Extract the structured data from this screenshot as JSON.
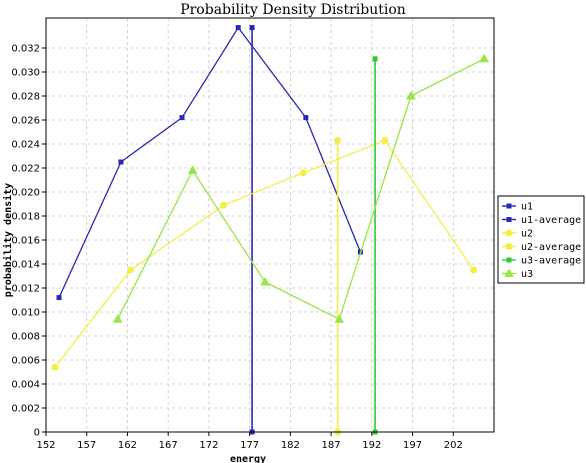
{
  "chart_data": {
    "type": "line",
    "title": "Probability Density Distribution",
    "xlabel": "energy",
    "ylabel": "probability density",
    "xlim": [
      152,
      207
    ],
    "ylim": [
      0,
      0.0345
    ],
    "x_ticks": [
      152,
      157,
      162,
      167,
      172,
      177,
      182,
      187,
      192,
      197,
      202
    ],
    "y_ticks": [
      0,
      0.002,
      0.004,
      0.006,
      0.008,
      0.01,
      0.012,
      0.014,
      0.016,
      0.018,
      0.02,
      0.022,
      0.024,
      0.026,
      0.028,
      0.03,
      0.032
    ],
    "x_tick_labels": [
      "152",
      "157",
      "162",
      "167",
      "172",
      "177",
      "182",
      "187",
      "192",
      "197",
      "202"
    ],
    "y_tick_labels": [
      "0",
      "0.002",
      "0.004",
      "0.006",
      "0.008",
      "0.010",
      "0.012",
      "0.014",
      "0.016",
      "0.018",
      "0.020",
      "0.022",
      "0.024",
      "0.026",
      "0.028",
      "0.030",
      "0.032"
    ],
    "grid": true,
    "legend_position": "right",
    "series": [
      {
        "name": "u1",
        "kind": "line",
        "marker": "square",
        "color": "#2828b4",
        "x": [
          153.6,
          161.2,
          168.7,
          175.6,
          183.9,
          190.6
        ],
        "y": [
          0.0112,
          0.0225,
          0.0262,
          0.0337,
          0.0262,
          0.015
        ]
      },
      {
        "name": "u1-average",
        "kind": "vline",
        "marker": "square",
        "color": "#2828b4",
        "x": 177.3,
        "y": [
          0,
          0.0337
        ]
      },
      {
        "name": "u2",
        "kind": "line",
        "marker": "circle",
        "color": "#f0f046",
        "x": [
          153.1,
          162.4,
          173.8,
          183.6,
          193.6,
          204.5
        ],
        "y": [
          0.0054,
          0.0135,
          0.0189,
          0.0216,
          0.0243,
          0.0135
        ]
      },
      {
        "name": "u2-average",
        "kind": "vline",
        "marker": "circle",
        "color": "#f0f046",
        "x": 187.8,
        "y": [
          0,
          0.0243
        ]
      },
      {
        "name": "u3-average",
        "kind": "vline",
        "marker": "square",
        "color": "#32c832",
        "x": 192.4,
        "y": [
          0,
          0.0311
        ]
      },
      {
        "name": "u3",
        "kind": "line",
        "marker": "triangle",
        "color": "#96e646",
        "x": [
          160.8,
          170.0,
          178.9,
          188.0,
          196.8,
          205.8
        ],
        "y": [
          0.0094,
          0.0218,
          0.0125,
          0.0094,
          0.028,
          0.0311
        ]
      }
    ]
  }
}
